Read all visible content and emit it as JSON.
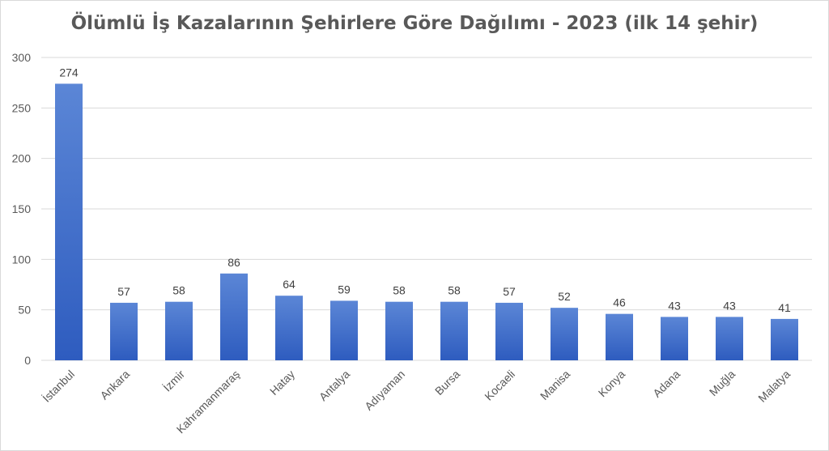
{
  "chart_data": {
    "type": "bar",
    "title": "Ölümlü İş Kazalarının Şehirlere Göre Dağılımı - 2023 (ilk 14 şehir)",
    "categories": [
      "İstanbul",
      "Ankara",
      "İzmir",
      "Kahramanmaraş",
      "Hatay",
      "Antalya",
      "Adıyaman",
      "Bursa",
      "Kocaeli",
      "Manisa",
      "Konya",
      "Adana",
      "Muğla",
      "Malatya"
    ],
    "values": [
      274,
      57,
      58,
      86,
      64,
      59,
      58,
      58,
      57,
      52,
      46,
      43,
      43,
      41
    ],
    "ylim": [
      0,
      300
    ],
    "yticks": [
      0,
      50,
      100,
      150,
      200,
      250,
      300
    ],
    "grid": true,
    "data_labels": true,
    "bar_color_top": "#5b86d6",
    "bar_color_bottom": "#2e5cbf"
  }
}
